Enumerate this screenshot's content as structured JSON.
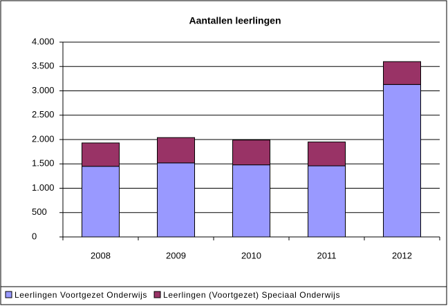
{
  "chart_data": {
    "type": "stacked_bar",
    "title": "Aantallen leerlingen",
    "categories": [
      "2008",
      "2009",
      "2010",
      "2011",
      "2012"
    ],
    "series": [
      {
        "name": "Leerlingen Voortgezet Onderwijs",
        "color": "#9999ff",
        "values": [
          1450,
          1520,
          1480,
          1460,
          3130
        ]
      },
      {
        "name": "Leerlingen (Voortgezet) Speciaal Onderwijs",
        "color": "#993366",
        "values": [
          480,
          520,
          510,
          490,
          470
        ]
      }
    ],
    "ylim": [
      0,
      4000
    ],
    "yticks": [
      0,
      500,
      {
        "value": 1000,
        "label": "1.000"
      },
      {
        "value": 1500,
        "label": "1.500"
      },
      {
        "value": 2000,
        "label": "2.000"
      },
      {
        "value": 2500,
        "label": "2.500"
      },
      {
        "value": 3000,
        "label": "3.000"
      },
      {
        "value": 3500,
        "label": "3.500"
      },
      {
        "value": 4000,
        "label": "4.000"
      }
    ],
    "grid": true,
    "legend": "bottom"
  }
}
